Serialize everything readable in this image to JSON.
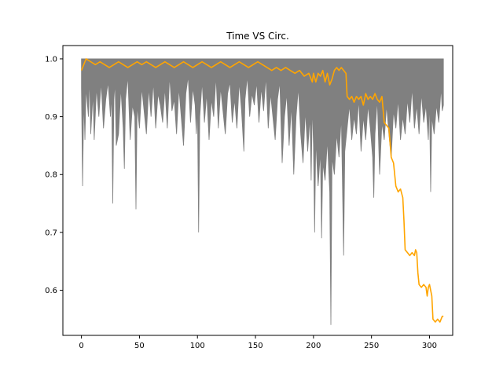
{
  "chart_data": {
    "type": "line",
    "title": "Time VS Circ.",
    "xlabel": "",
    "ylabel": "",
    "xlim": [
      -16,
      320
    ],
    "ylim": [
      0.522,
      1.023
    ],
    "xticks": [
      0,
      50,
      100,
      150,
      200,
      250,
      300
    ],
    "yticks": [
      0.6,
      0.7,
      0.8,
      0.9,
      1.0
    ],
    "xtick_labels": [
      "0",
      "50",
      "100",
      "150",
      "200",
      "250",
      "300"
    ],
    "ytick_labels": [
      "0.6",
      "0.7",
      "0.8",
      "0.9",
      "1.0"
    ],
    "grid": false,
    "colors": {
      "band": "#808080",
      "line": "#ffa500"
    },
    "band": {
      "x_end": 312,
      "upper": 1.0,
      "lower_points": [
        [
          0,
          0.95
        ],
        [
          1,
          0.78
        ],
        [
          2,
          0.93
        ],
        [
          3,
          0.86
        ],
        [
          4,
          0.95
        ],
        [
          6,
          0.9
        ],
        [
          7,
          0.97
        ],
        [
          8,
          0.87
        ],
        [
          10,
          0.94
        ],
        [
          11,
          0.86
        ],
        [
          13,
          0.95
        ],
        [
          15,
          0.9
        ],
        [
          17,
          0.96
        ],
        [
          19,
          0.88
        ],
        [
          21,
          0.93
        ],
        [
          23,
          0.96
        ],
        [
          25,
          0.9
        ],
        [
          26,
          0.94
        ],
        [
          27,
          0.75
        ],
        [
          28,
          0.93
        ],
        [
          29,
          0.96
        ],
        [
          30,
          0.85
        ],
        [
          32,
          0.87
        ],
        [
          34,
          0.95
        ],
        [
          36,
          0.88
        ],
        [
          37,
          0.81
        ],
        [
          38,
          0.93
        ],
        [
          40,
          0.97
        ],
        [
          42,
          0.86
        ],
        [
          44,
          0.92
        ],
        [
          46,
          0.9
        ],
        [
          47,
          0.74
        ],
        [
          48,
          0.92
        ],
        [
          50,
          0.88
        ],
        [
          52,
          0.95
        ],
        [
          54,
          0.91
        ],
        [
          56,
          0.87
        ],
        [
          58,
          0.95
        ],
        [
          60,
          0.9
        ],
        [
          62,
          0.96
        ],
        [
          64,
          0.88
        ],
        [
          66,
          0.94
        ],
        [
          68,
          0.92
        ],
        [
          70,
          0.89
        ],
        [
          72,
          0.95
        ],
        [
          74,
          0.88
        ],
        [
          76,
          0.97
        ],
        [
          78,
          0.91
        ],
        [
          80,
          0.93
        ],
        [
          82,
          0.87
        ],
        [
          84,
          0.95
        ],
        [
          86,
          0.9
        ],
        [
          88,
          0.85
        ],
        [
          90,
          0.94
        ],
        [
          92,
          0.97
        ],
        [
          94,
          0.89
        ],
        [
          96,
          0.95
        ],
        [
          98,
          0.92
        ],
        [
          99,
          0.87
        ],
        [
          100,
          0.92
        ],
        [
          101,
          0.7
        ],
        [
          102,
          0.9
        ],
        [
          104,
          0.96
        ],
        [
          106,
          0.89
        ],
        [
          108,
          0.94
        ],
        [
          110,
          0.86
        ],
        [
          112,
          0.93
        ],
        [
          114,
          0.9
        ],
        [
          116,
          0.97
        ],
        [
          118,
          0.88
        ],
        [
          120,
          0.95
        ],
        [
          122,
          0.91
        ],
        [
          124,
          0.87
        ],
        [
          126,
          0.94
        ],
        [
          128,
          0.96
        ],
        [
          130,
          0.89
        ],
        [
          132,
          0.93
        ],
        [
          134,
          0.88
        ],
        [
          136,
          0.96
        ],
        [
          138,
          0.91
        ],
        [
          140,
          0.84
        ],
        [
          141,
          0.93
        ],
        [
          143,
          0.97
        ],
        [
          145,
          0.9
        ],
        [
          147,
          0.94
        ],
        [
          149,
          0.92
        ],
        [
          151,
          0.96
        ],
        [
          153,
          0.89
        ],
        [
          155,
          0.95
        ],
        [
          157,
          0.91
        ],
        [
          159,
          0.97
        ],
        [
          161,
          0.88
        ],
        [
          163,
          0.94
        ],
        [
          165,
          0.9
        ],
        [
          167,
          0.86
        ],
        [
          169,
          0.93
        ],
        [
          171,
          0.96
        ],
        [
          173,
          0.82
        ],
        [
          175,
          0.9
        ],
        [
          177,
          0.94
        ],
        [
          179,
          0.85
        ],
        [
          181,
          0.92
        ],
        [
          183,
          0.8
        ],
        [
          185,
          0.9
        ],
        [
          187,
          0.95
        ],
        [
          189,
          0.87
        ],
        [
          191,
          0.82
        ],
        [
          193,
          0.91
        ],
        [
          195,
          0.84
        ],
        [
          197,
          0.9
        ],
        [
          198,
          0.79
        ],
        [
          199,
          0.92
        ],
        [
          200,
          0.85
        ],
        [
          201,
          0.7
        ],
        [
          202,
          0.86
        ],
        [
          204,
          0.78
        ],
        [
          206,
          0.84
        ],
        [
          207,
          0.69
        ],
        [
          208,
          0.82
        ],
        [
          210,
          0.79
        ],
        [
          212,
          0.86
        ],
        [
          214,
          0.77
        ],
        [
          215,
          0.54
        ],
        [
          216,
          0.83
        ],
        [
          218,
          0.8
        ],
        [
          220,
          0.87
        ],
        [
          222,
          0.83
        ],
        [
          224,
          0.9
        ],
        [
          225,
          0.78
        ],
        [
          226,
          0.66
        ],
        [
          227,
          0.84
        ],
        [
          229,
          0.88
        ],
        [
          231,
          0.92
        ],
        [
          233,
          0.86
        ],
        [
          235,
          0.9
        ],
        [
          237,
          0.87
        ],
        [
          239,
          0.93
        ],
        [
          241,
          0.84
        ],
        [
          243,
          0.9
        ],
        [
          245,
          0.86
        ],
        [
          247,
          0.92
        ],
        [
          249,
          0.88
        ],
        [
          251,
          0.83
        ],
        [
          252,
          0.76
        ],
        [
          253,
          0.87
        ],
        [
          255,
          0.93
        ],
        [
          257,
          0.8
        ],
        [
          259,
          0.89
        ],
        [
          261,
          0.86
        ],
        [
          263,
          0.92
        ],
        [
          265,
          0.87
        ],
        [
          267,
          0.83
        ],
        [
          269,
          0.91
        ],
        [
          271,
          0.88
        ],
        [
          273,
          0.93
        ],
        [
          275,
          0.86
        ],
        [
          277,
          0.9
        ],
        [
          279,
          0.87
        ],
        [
          281,
          0.93
        ],
        [
          283,
          0.89
        ],
        [
          285,
          0.95
        ],
        [
          287,
          0.88
        ],
        [
          289,
          0.92
        ],
        [
          291,
          0.87
        ],
        [
          293,
          0.94
        ],
        [
          295,
          0.89
        ],
        [
          297,
          0.92
        ],
        [
          299,
          0.86
        ],
        [
          300,
          0.93
        ],
        [
          301,
          0.77
        ],
        [
          302,
          0.9
        ],
        [
          304,
          0.87
        ],
        [
          306,
          0.92
        ],
        [
          308,
          0.89
        ],
        [
          310,
          0.95
        ],
        [
          311,
          0.91
        ],
        [
          312,
          0.92
        ]
      ]
    },
    "series": [
      {
        "values": [
          [
            0,
            0.98
          ],
          [
            2,
            0.99
          ],
          [
            4,
            1.0
          ],
          [
            8,
            0.995
          ],
          [
            12,
            0.99
          ],
          [
            16,
            0.995
          ],
          [
            20,
            0.99
          ],
          [
            24,
            0.985
          ],
          [
            28,
            0.99
          ],
          [
            32,
            0.995
          ],
          [
            36,
            0.99
          ],
          [
            40,
            0.985
          ],
          [
            44,
            0.99
          ],
          [
            48,
            0.995
          ],
          [
            52,
            0.99
          ],
          [
            56,
            0.995
          ],
          [
            60,
            0.99
          ],
          [
            64,
            0.985
          ],
          [
            68,
            0.99
          ],
          [
            72,
            0.995
          ],
          [
            76,
            0.99
          ],
          [
            80,
            0.985
          ],
          [
            84,
            0.99
          ],
          [
            88,
            0.995
          ],
          [
            92,
            0.99
          ],
          [
            96,
            0.985
          ],
          [
            100,
            0.99
          ],
          [
            104,
            0.995
          ],
          [
            108,
            0.99
          ],
          [
            112,
            0.985
          ],
          [
            116,
            0.99
          ],
          [
            120,
            0.995
          ],
          [
            124,
            0.99
          ],
          [
            128,
            0.985
          ],
          [
            132,
            0.99
          ],
          [
            136,
            0.995
          ],
          [
            140,
            0.99
          ],
          [
            144,
            0.985
          ],
          [
            148,
            0.99
          ],
          [
            152,
            0.995
          ],
          [
            156,
            0.99
          ],
          [
            160,
            0.985
          ],
          [
            164,
            0.98
          ],
          [
            168,
            0.985
          ],
          [
            172,
            0.98
          ],
          [
            176,
            0.985
          ],
          [
            180,
            0.98
          ],
          [
            184,
            0.975
          ],
          [
            188,
            0.98
          ],
          [
            192,
            0.97
          ],
          [
            196,
            0.975
          ],
          [
            199,
            0.96
          ],
          [
            200,
            0.975
          ],
          [
            202,
            0.96
          ],
          [
            204,
            0.975
          ],
          [
            206,
            0.97
          ],
          [
            208,
            0.98
          ],
          [
            210,
            0.96
          ],
          [
            212,
            0.975
          ],
          [
            214,
            0.955
          ],
          [
            216,
            0.965
          ],
          [
            218,
            0.98
          ],
          [
            220,
            0.985
          ],
          [
            222,
            0.98
          ],
          [
            224,
            0.985
          ],
          [
            226,
            0.98
          ],
          [
            228,
            0.975
          ],
          [
            229,
            0.935
          ],
          [
            231,
            0.93
          ],
          [
            233,
            0.935
          ],
          [
            235,
            0.925
          ],
          [
            237,
            0.935
          ],
          [
            239,
            0.93
          ],
          [
            241,
            0.935
          ],
          [
            243,
            0.92
          ],
          [
            245,
            0.94
          ],
          [
            247,
            0.93
          ],
          [
            249,
            0.935
          ],
          [
            251,
            0.93
          ],
          [
            253,
            0.94
          ],
          [
            255,
            0.93
          ],
          [
            257,
            0.925
          ],
          [
            259,
            0.935
          ],
          [
            261,
            0.89
          ],
          [
            263,
            0.885
          ],
          [
            265,
            0.88
          ],
          [
            267,
            0.83
          ],
          [
            269,
            0.82
          ],
          [
            271,
            0.78
          ],
          [
            273,
            0.77
          ],
          [
            275,
            0.775
          ],
          [
            277,
            0.76
          ],
          [
            278,
            0.72
          ],
          [
            279,
            0.67
          ],
          [
            281,
            0.665
          ],
          [
            283,
            0.66
          ],
          [
            285,
            0.665
          ],
          [
            287,
            0.66
          ],
          [
            288,
            0.67
          ],
          [
            289,
            0.665
          ],
          [
            290,
            0.63
          ],
          [
            291,
            0.61
          ],
          [
            293,
            0.605
          ],
          [
            295,
            0.61
          ],
          [
            297,
            0.605
          ],
          [
            298,
            0.59
          ],
          [
            299,
            0.605
          ],
          [
            300,
            0.61
          ],
          [
            301,
            0.6
          ],
          [
            302,
            0.59
          ],
          [
            303,
            0.55
          ],
          [
            305,
            0.545
          ],
          [
            307,
            0.55
          ],
          [
            309,
            0.545
          ],
          [
            311,
            0.555
          ],
          [
            312,
            0.555
          ]
        ]
      }
    ]
  }
}
